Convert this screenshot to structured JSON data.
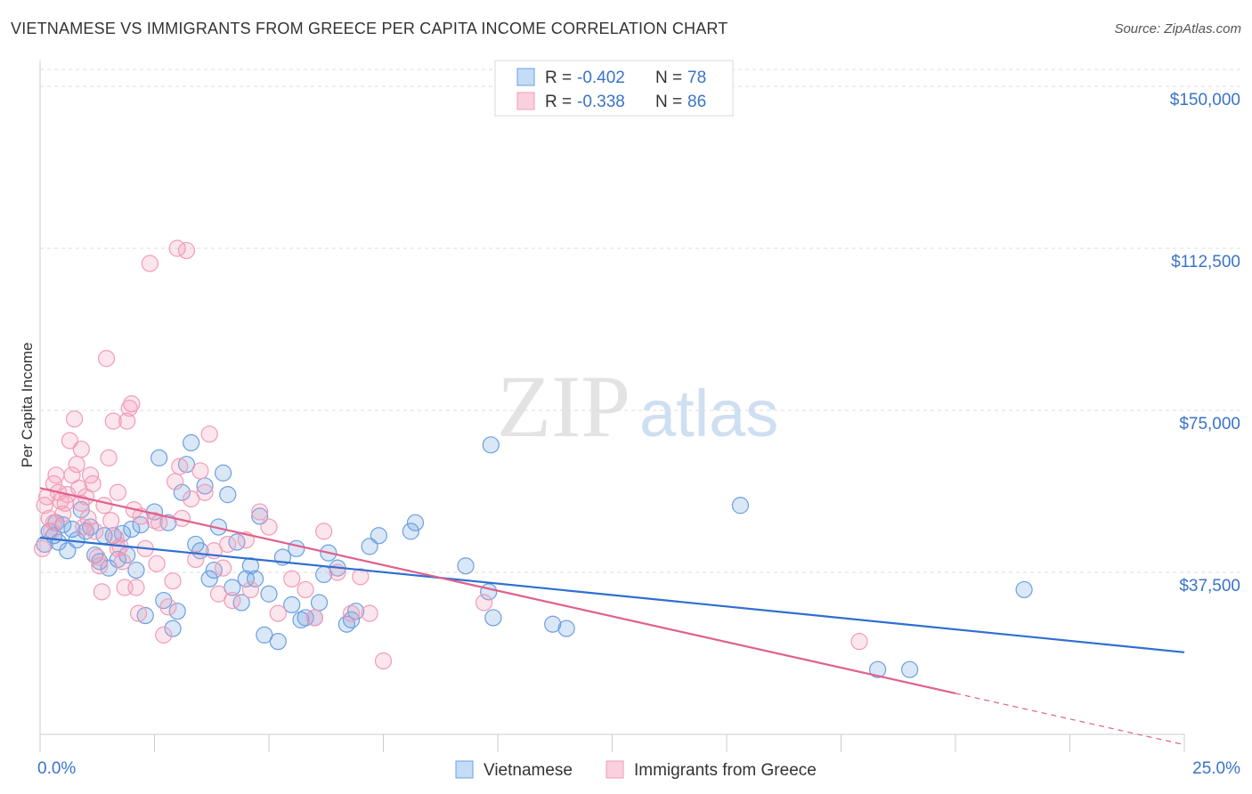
{
  "chart_data": {
    "type": "scatter",
    "title": "VIETNAMESE VS IMMIGRANTS FROM GREECE PER CAPITA INCOME CORRELATION CHART",
    "source": "Source: ZipAtlas.com",
    "watermark": {
      "zip": "ZIP",
      "atlas": "atlas"
    },
    "xlabel": "",
    "ylabel": "Per Capita Income",
    "xlim": [
      0,
      25
    ],
    "ylim": [
      0,
      155000
    ],
    "x_tick_labels": [
      "0.0%",
      "25.0%"
    ],
    "y_ticks": [
      {
        "value": 37500,
        "label": "$37,500"
      },
      {
        "value": 75000,
        "label": "$75,000"
      },
      {
        "value": 112500,
        "label": "$112,500"
      },
      {
        "value": 150000,
        "label": "$150,000"
      }
    ],
    "legend": [
      {
        "r_label": "R =",
        "r": "-0.402",
        "n_label": "N =",
        "n": "78"
      },
      {
        "r_label": "R =",
        "r": "-0.338",
        "n_label": "N =",
        "n": "86"
      }
    ],
    "series": [
      {
        "name": "Vietnamese",
        "color": "#6b9fe0",
        "line_color": "#2f6fd0",
        "trend": {
          "x0": 0,
          "y0": 45500,
          "x1": 25,
          "y1": 19000
        },
        "points": [
          [
            0.1,
            44000
          ],
          [
            0.2,
            47000
          ],
          [
            0.3,
            46000
          ],
          [
            0.35,
            49000
          ],
          [
            0.4,
            44500
          ],
          [
            0.5,
            48500
          ],
          [
            0.6,
            42500
          ],
          [
            0.7,
            47500
          ],
          [
            0.8,
            45000
          ],
          [
            0.9,
            52000
          ],
          [
            1.0,
            47000
          ],
          [
            1.1,
            48000
          ],
          [
            1.2,
            41500
          ],
          [
            1.3,
            40000
          ],
          [
            1.4,
            46000
          ],
          [
            1.5,
            38500
          ],
          [
            1.6,
            46000
          ],
          [
            1.7,
            40500
          ],
          [
            1.8,
            46500
          ],
          [
            1.9,
            41500
          ],
          [
            2.0,
            47500
          ],
          [
            2.1,
            38000
          ],
          [
            2.2,
            48500
          ],
          [
            2.3,
            27500
          ],
          [
            2.5,
            51500
          ],
          [
            2.6,
            64000
          ],
          [
            2.7,
            31000
          ],
          [
            2.8,
            49000
          ],
          [
            2.9,
            24500
          ],
          [
            3.0,
            28500
          ],
          [
            3.1,
            56000
          ],
          [
            3.2,
            62500
          ],
          [
            3.3,
            67500
          ],
          [
            3.4,
            44000
          ],
          [
            3.5,
            42500
          ],
          [
            3.6,
            57500
          ],
          [
            3.7,
            36000
          ],
          [
            3.8,
            38000
          ],
          [
            3.9,
            48000
          ],
          [
            4.0,
            60500
          ],
          [
            4.1,
            55500
          ],
          [
            4.2,
            34000
          ],
          [
            4.3,
            44500
          ],
          [
            4.4,
            30500
          ],
          [
            4.5,
            36000
          ],
          [
            4.6,
            39000
          ],
          [
            4.7,
            36000
          ],
          [
            4.8,
            50500
          ],
          [
            4.9,
            23000
          ],
          [
            5.0,
            32500
          ],
          [
            5.2,
            21500
          ],
          [
            5.3,
            41000
          ],
          [
            5.5,
            30000
          ],
          [
            5.6,
            43000
          ],
          [
            5.7,
            26500
          ],
          [
            5.8,
            27000
          ],
          [
            6.0,
            27000
          ],
          [
            6.1,
            30500
          ],
          [
            6.2,
            37000
          ],
          [
            6.3,
            42000
          ],
          [
            6.5,
            38500
          ],
          [
            6.7,
            25500
          ],
          [
            6.8,
            26500
          ],
          [
            6.9,
            28500
          ],
          [
            7.2,
            43500
          ],
          [
            7.4,
            46000
          ],
          [
            8.1,
            47000
          ],
          [
            8.2,
            49000
          ],
          [
            9.3,
            39000
          ],
          [
            9.8,
            33000
          ],
          [
            9.9,
            27000
          ],
          [
            9.85,
            67000
          ],
          [
            11.2,
            25500
          ],
          [
            11.5,
            24500
          ],
          [
            15.3,
            53000
          ],
          [
            18.3,
            15000
          ],
          [
            19.0,
            15000
          ],
          [
            21.5,
            33500
          ]
        ]
      },
      {
        "name": "Immigrants from Greece",
        "color": "#f29bb6",
        "line_color": "#e0608c",
        "trend": {
          "x0": 0,
          "y0": 57000,
          "x1": 20,
          "y1": 9500
        },
        "trend_dash": {
          "x0": 20,
          "y0": 9500,
          "x1": 25,
          "y1": -2400
        },
        "points": [
          [
            0.05,
            43000
          ],
          [
            0.1,
            53000
          ],
          [
            0.15,
            55000
          ],
          [
            0.2,
            50000
          ],
          [
            0.25,
            47000
          ],
          [
            0.3,
            58000
          ],
          [
            0.35,
            60000
          ],
          [
            0.4,
            56000
          ],
          [
            0.45,
            54000
          ],
          [
            0.5,
            51000
          ],
          [
            0.55,
            53500
          ],
          [
            0.6,
            55500
          ],
          [
            0.65,
            68000
          ],
          [
            0.7,
            60000
          ],
          [
            0.75,
            73000
          ],
          [
            0.8,
            62500
          ],
          [
            0.85,
            57000
          ],
          [
            0.9,
            66000
          ],
          [
            0.95,
            48000
          ],
          [
            1.0,
            55000
          ],
          [
            1.05,
            50000
          ],
          [
            1.1,
            60000
          ],
          [
            1.15,
            58000
          ],
          [
            1.2,
            47000
          ],
          [
            1.25,
            41000
          ],
          [
            1.3,
            39000
          ],
          [
            1.35,
            33000
          ],
          [
            1.4,
            53000
          ],
          [
            1.45,
            87000
          ],
          [
            1.5,
            64000
          ],
          [
            1.55,
            49500
          ],
          [
            1.6,
            72500
          ],
          [
            1.65,
            45500
          ],
          [
            1.7,
            56000
          ],
          [
            1.75,
            43500
          ],
          [
            1.8,
            40000
          ],
          [
            1.85,
            34000
          ],
          [
            1.9,
            72500
          ],
          [
            1.95,
            75500
          ],
          [
            2.0,
            76500
          ],
          [
            2.05,
            52000
          ],
          [
            2.1,
            34000
          ],
          [
            2.15,
            28000
          ],
          [
            2.2,
            50500
          ],
          [
            2.3,
            43000
          ],
          [
            2.4,
            109000
          ],
          [
            2.5,
            49500
          ],
          [
            2.55,
            39500
          ],
          [
            2.6,
            49000
          ],
          [
            2.7,
            23000
          ],
          [
            2.8,
            29500
          ],
          [
            2.9,
            35500
          ],
          [
            2.95,
            58500
          ],
          [
            3.0,
            112500
          ],
          [
            3.05,
            62000
          ],
          [
            3.1,
            50000
          ],
          [
            3.2,
            112000
          ],
          [
            3.3,
            54500
          ],
          [
            3.4,
            40500
          ],
          [
            3.5,
            61000
          ],
          [
            3.6,
            56000
          ],
          [
            3.7,
            69500
          ],
          [
            3.8,
            42500
          ],
          [
            3.9,
            32500
          ],
          [
            4.0,
            38500
          ],
          [
            4.1,
            44000
          ],
          [
            4.2,
            31000
          ],
          [
            4.5,
            45000
          ],
          [
            4.6,
            33500
          ],
          [
            4.8,
            51500
          ],
          [
            5.0,
            48000
          ],
          [
            5.2,
            28000
          ],
          [
            5.5,
            36000
          ],
          [
            5.8,
            33500
          ],
          [
            6.0,
            27000
          ],
          [
            6.2,
            47000
          ],
          [
            6.5,
            37500
          ],
          [
            6.8,
            28000
          ],
          [
            7.0,
            36500
          ],
          [
            7.2,
            28000
          ],
          [
            7.5,
            17000
          ],
          [
            0.3,
            49000
          ],
          [
            0.9,
            53500
          ],
          [
            1.7,
            43000
          ],
          [
            9.7,
            30500
          ],
          [
            17.9,
            21500
          ]
        ]
      }
    ]
  }
}
